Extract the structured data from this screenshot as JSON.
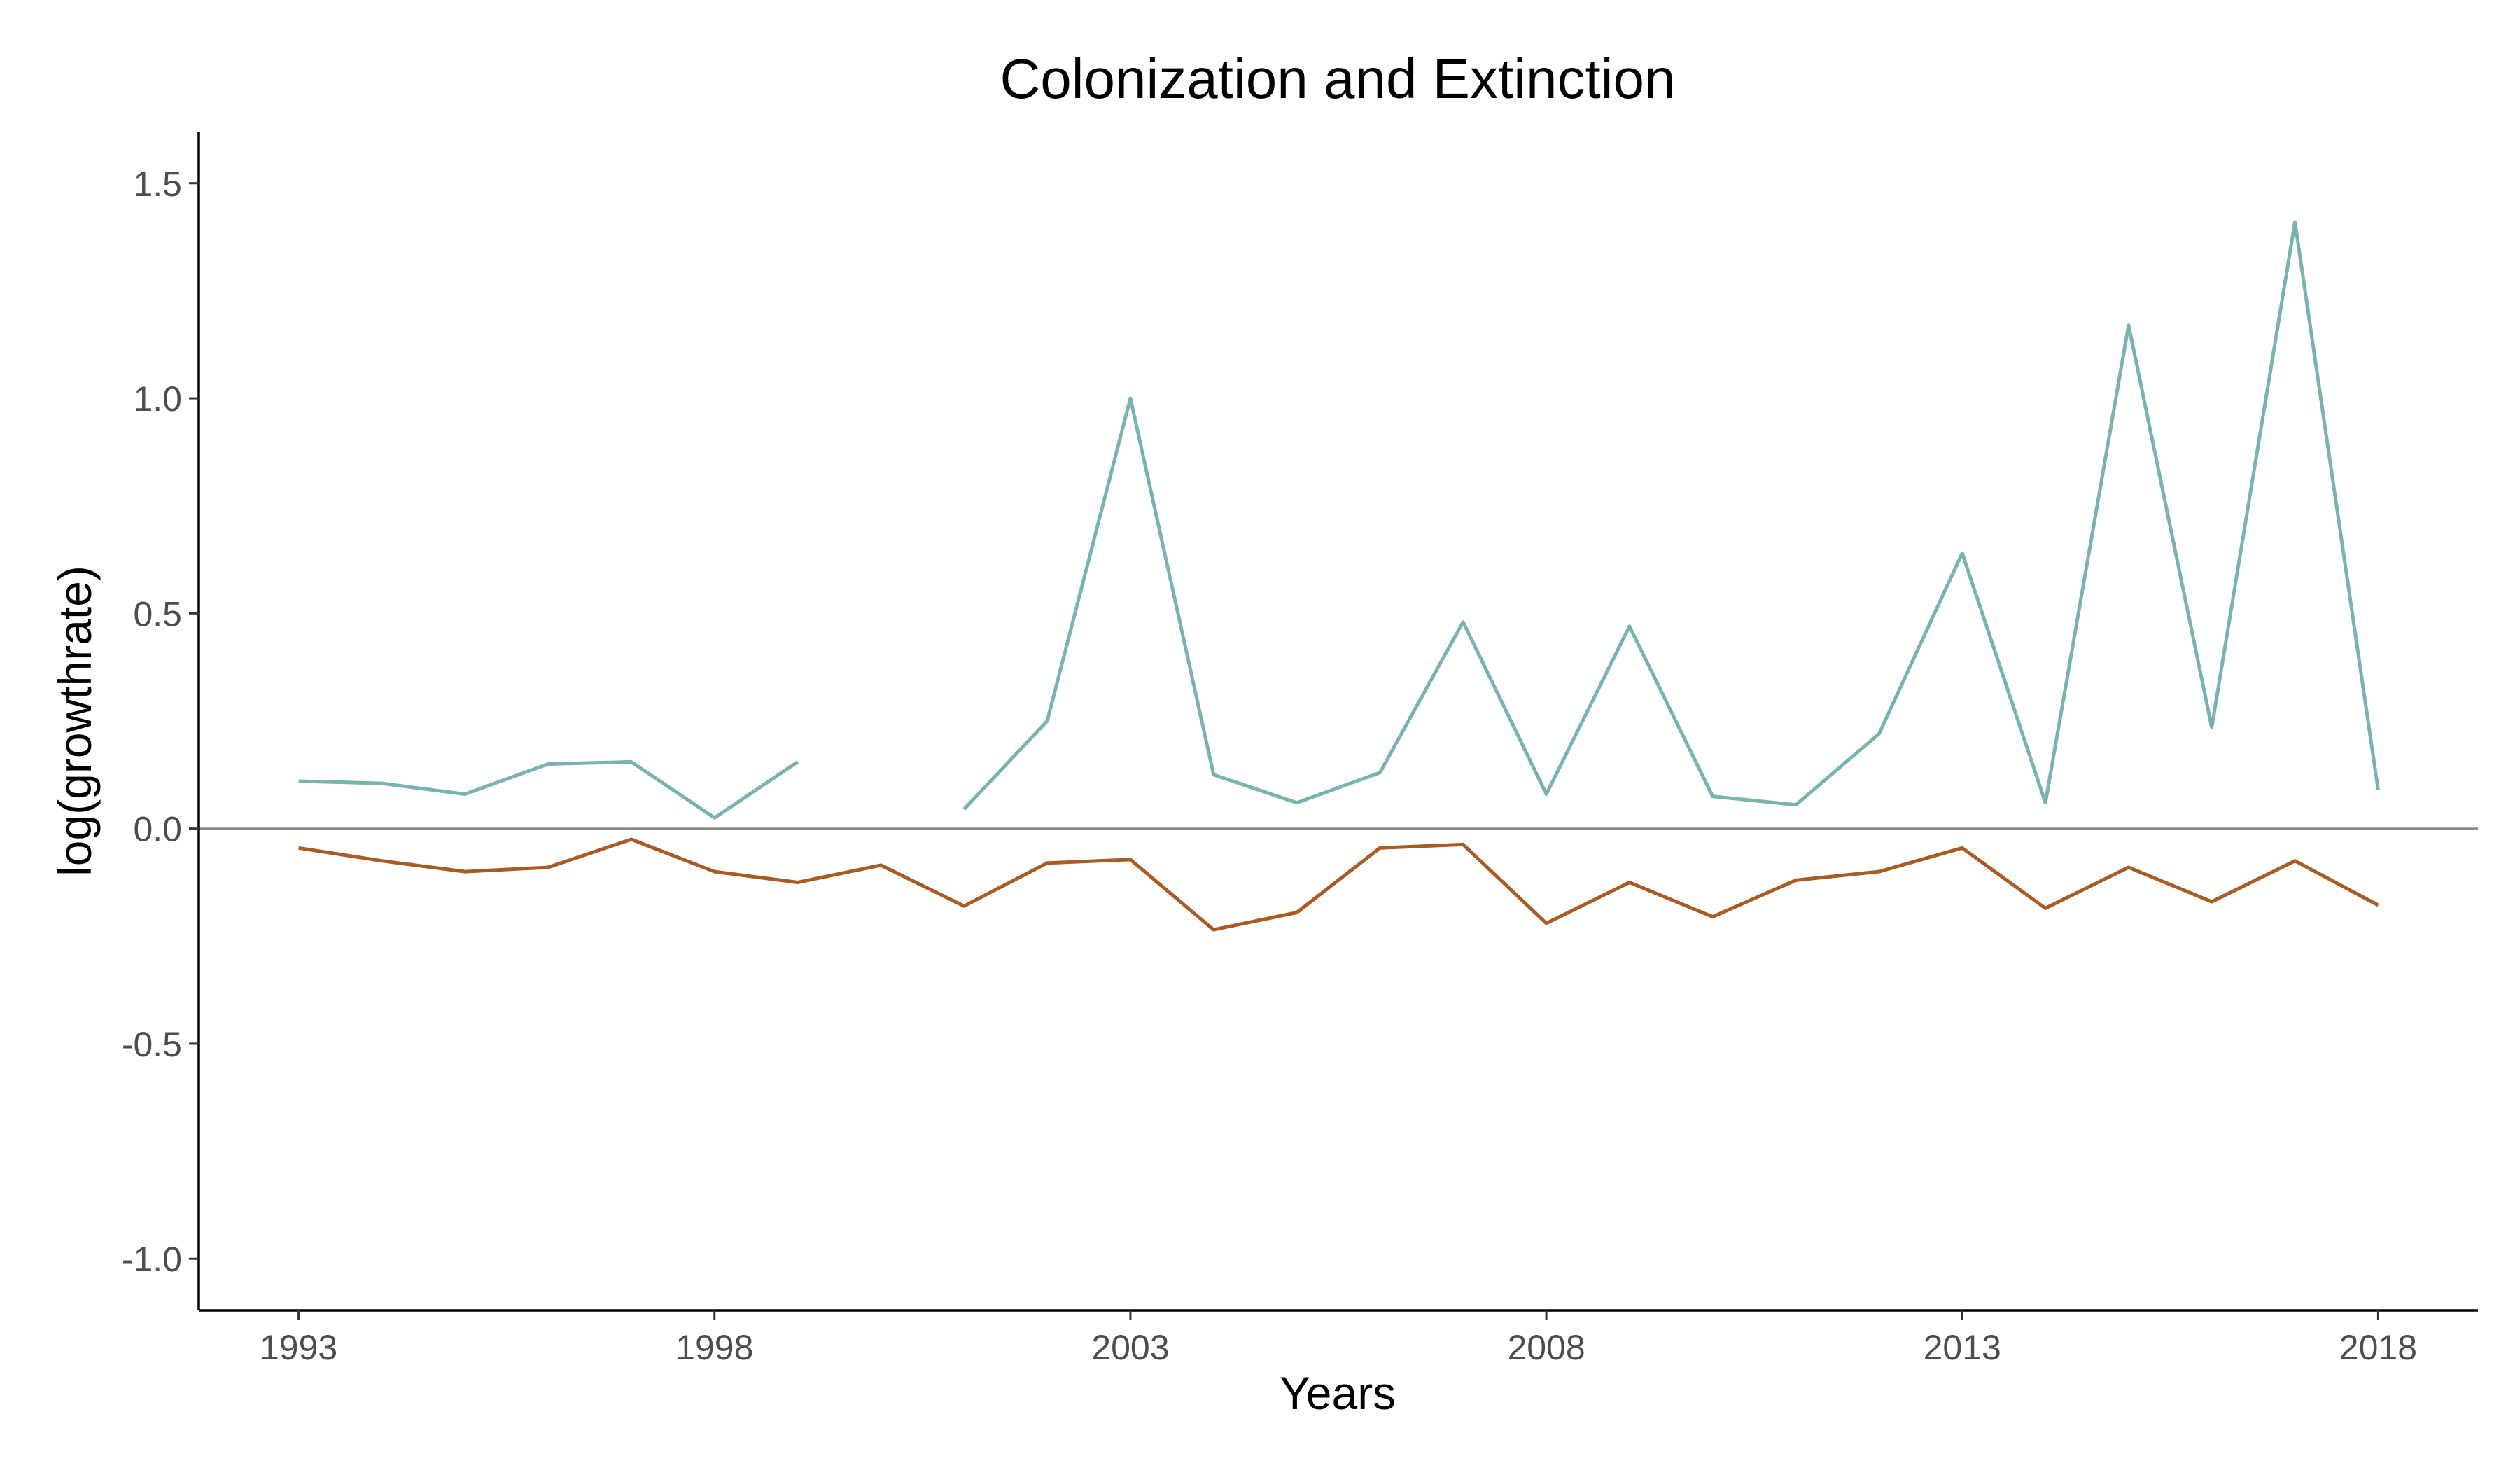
{
  "chart_data": {
    "type": "line",
    "title": "Colonization and Extinction",
    "xlabel": "Years",
    "ylabel": "log(growthrate)",
    "xlim": [
      1993,
      2018
    ],
    "ylim": [
      -1.1,
      1.62
    ],
    "x_ticks": [
      1993,
      1998,
      2003,
      2008,
      2013,
      2018
    ],
    "y_ticks": [
      -1.0,
      -0.5,
      0.0,
      0.5,
      1.0,
      1.5
    ],
    "y_tick_labels": [
      "-1.0",
      "-0.5",
      "0.0",
      "0.5",
      "1.0",
      "1.5"
    ],
    "x_tick_labels": [
      "1993",
      "1998",
      "2003",
      "2008",
      "2013",
      "2018"
    ],
    "reference_line_y": 0,
    "grid": false,
    "legend": "none",
    "series": [
      {
        "color": "#78b3ae",
        "x": [
          1993,
          1994,
          1995,
          1996,
          1997,
          1998,
          1999,
          2000,
          2001,
          2002,
          2003,
          2004,
          2005,
          2006,
          2007,
          2008,
          2009,
          2010,
          2011,
          2012,
          2013,
          2014,
          2015,
          2016,
          2017,
          2018
        ],
        "values": [
          0.11,
          0.105,
          0.08,
          0.15,
          0.155,
          0.025,
          0.155,
          null,
          0.045,
          0.25,
          1.0,
          0.125,
          0.06,
          0.13,
          0.48,
          0.08,
          0.47,
          0.075,
          0.055,
          0.22,
          0.64,
          0.06,
          1.17,
          0.235,
          1.41,
          0.09
        ]
      },
      {
        "color": "#a85b22",
        "x": [
          1993,
          1994,
          1995,
          1996,
          1997,
          1998,
          1999,
          2000,
          2001,
          2002,
          2003,
          2004,
          2005,
          2006,
          2007,
          2008,
          2009,
          2010,
          2011,
          2012,
          2013,
          2014,
          2015,
          2016,
          2017,
          2018
        ],
        "values": [
          -0.045,
          -0.075,
          -0.1,
          -0.09,
          -0.025,
          -0.1,
          -0.125,
          -0.085,
          -0.18,
          -0.08,
          -0.072,
          -0.235,
          -0.195,
          -0.045,
          -0.037,
          -0.22,
          -0.125,
          -0.205,
          -0.12,
          -0.1,
          -0.045,
          -0.185,
          -0.09,
          -0.17,
          -0.075,
          -0.178
        ]
      }
    ]
  }
}
